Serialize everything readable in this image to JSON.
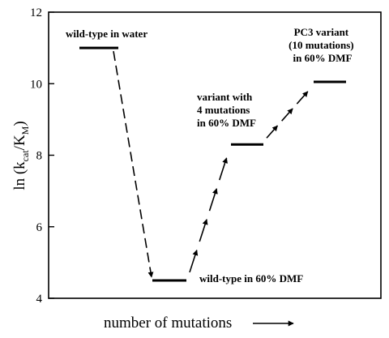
{
  "chart_data": {
    "type": "line",
    "xlabel": "number of mutations",
    "ylabel_main": "ln (k",
    "ylabel_sub1": "cat",
    "ylabel_mid": "/K",
    "ylabel_sub2": "M",
    "ylabel_end": ")",
    "ylim": [
      4,
      12
    ],
    "yticks": [
      "4",
      "6",
      "8",
      "10",
      "12"
    ],
    "grid": false,
    "levels": [
      {
        "id": "wt-water",
        "y": 11.0,
        "lines": [
          "wild-type in water"
        ]
      },
      {
        "id": "wt-dmf",
        "y": 4.5,
        "lines": [
          "wild-type in 60% DMF"
        ]
      },
      {
        "id": "var4",
        "y": 8.3,
        "lines": [
          "variant with",
          "4 mutations",
          "in 60% DMF"
        ]
      },
      {
        "id": "pc3",
        "y": 10.05,
        "lines": [
          "PC3 variant",
          "(10 mutations)",
          "in 60% DMF"
        ]
      }
    ]
  }
}
